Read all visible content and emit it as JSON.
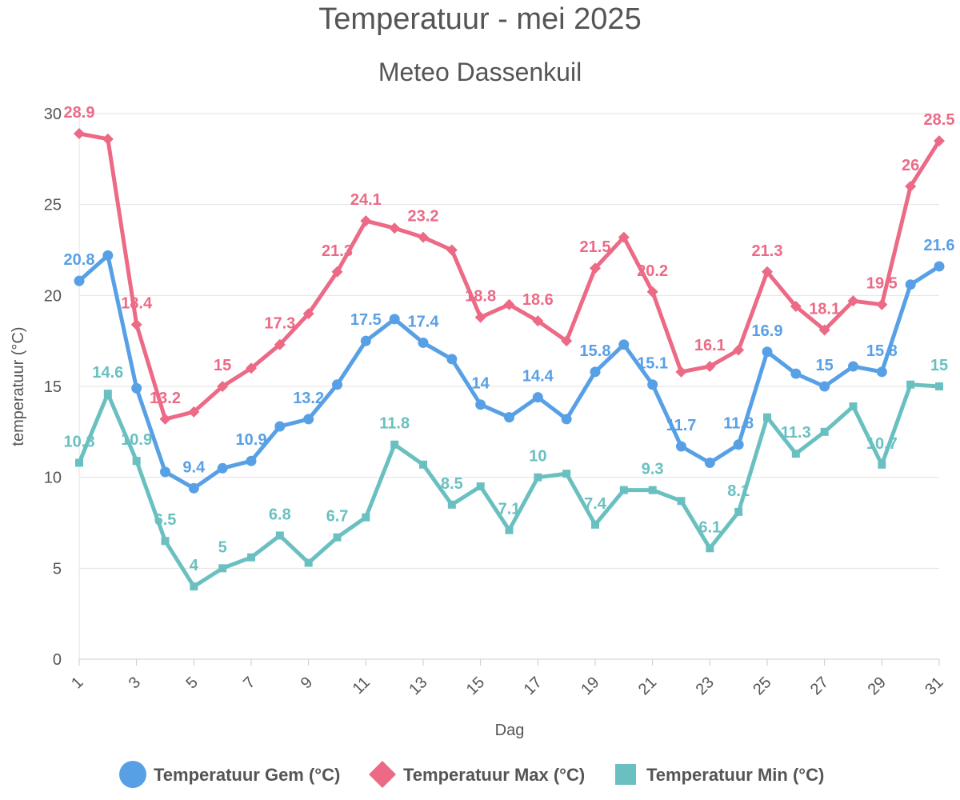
{
  "chart_data": {
    "type": "line",
    "title": "Temperatuur - mei 2025",
    "subtitle": "Meteo Dassenkuil",
    "xlabel": "Dag",
    "ylabel": "temperatuur (°C)",
    "ylim": [
      0,
      30
    ],
    "yticks": [
      "0",
      "5",
      "10",
      "15",
      "20",
      "25",
      "30"
    ],
    "xtick_labels": [
      "1",
      "3",
      "5",
      "7",
      "9",
      "11",
      "13",
      "15",
      "17",
      "19",
      "21",
      "23",
      "25",
      "27",
      "29",
      "31"
    ],
    "x": [
      1,
      2,
      3,
      4,
      5,
      6,
      7,
      8,
      9,
      10,
      11,
      12,
      13,
      14,
      15,
      16,
      17,
      18,
      19,
      20,
      21,
      22,
      23,
      24,
      25,
      26,
      27,
      28,
      29,
      30,
      31
    ],
    "grid": "horizontal",
    "legend": "bottom",
    "series": [
      {
        "name": "Temperatuur Gem (°C)",
        "color": "#58a0e6",
        "marker": "circle",
        "values": [
          20.8,
          22.2,
          14.9,
          10.3,
          9.4,
          10.5,
          10.9,
          12.8,
          13.2,
          15.1,
          17.5,
          18.7,
          17.4,
          16.5,
          14.0,
          13.3,
          14.4,
          13.2,
          15.8,
          17.3,
          15.1,
          11.7,
          10.8,
          11.8,
          16.9,
          15.7,
          15.0,
          16.1,
          15.8,
          20.6,
          21.6
        ],
        "labels": [
          "20.8",
          "",
          "",
          "",
          "9.4",
          "",
          "10.9",
          "",
          "13.2",
          "",
          "17.5",
          "",
          "17.4",
          "",
          "14",
          "",
          "14.4",
          "",
          "15.8",
          "",
          "15.1",
          "11.7",
          "",
          "11.8",
          "16.9",
          "",
          "15",
          "",
          "15.8",
          "",
          "21.6"
        ]
      },
      {
        "name": "Temperatuur Max (°C)",
        "color": "#ec6a86",
        "marker": "diamond",
        "values": [
          28.9,
          28.6,
          18.4,
          13.2,
          13.6,
          15.0,
          16.0,
          17.3,
          19.0,
          21.3,
          24.1,
          23.7,
          23.2,
          22.5,
          18.8,
          19.5,
          18.6,
          17.5,
          21.5,
          23.2,
          20.2,
          15.8,
          16.1,
          17.0,
          21.3,
          19.4,
          18.1,
          19.7,
          19.5,
          26.0,
          28.5
        ],
        "labels": [
          "28.9",
          "",
          "18.4",
          "13.2",
          "",
          "15",
          "",
          "17.3",
          "",
          "21.3",
          "24.1",
          "",
          "23.2",
          "",
          "18.8",
          "",
          "18.6",
          "",
          "21.5",
          "",
          "20.2",
          "",
          "16.1",
          "",
          "21.3",
          "",
          "18.1",
          "",
          "19.5",
          "26",
          "28.5"
        ]
      },
      {
        "name": "Temperatuur Min (°C)",
        "color": "#6ac0c0",
        "marker": "square",
        "values": [
          10.8,
          14.6,
          10.9,
          6.5,
          4.0,
          5.0,
          5.6,
          6.8,
          5.3,
          6.7,
          7.8,
          11.8,
          10.7,
          8.5,
          9.5,
          7.1,
          10.0,
          10.2,
          7.4,
          9.3,
          9.3,
          8.7,
          6.1,
          8.1,
          13.3,
          11.3,
          12.5,
          13.9,
          10.7,
          15.1,
          15.0
        ],
        "labels": [
          "10.8",
          "14.6",
          "10.9",
          "6.5",
          "4",
          "5",
          "",
          "6.8",
          "",
          "6.7",
          "",
          "11.8",
          "",
          "8.5",
          "",
          "7.1",
          "10",
          "",
          "7.4",
          "",
          "9.3",
          "",
          "6.1",
          "8.1",
          "",
          "11.3",
          "",
          "",
          "10.7",
          "",
          "15"
        ]
      }
    ]
  }
}
